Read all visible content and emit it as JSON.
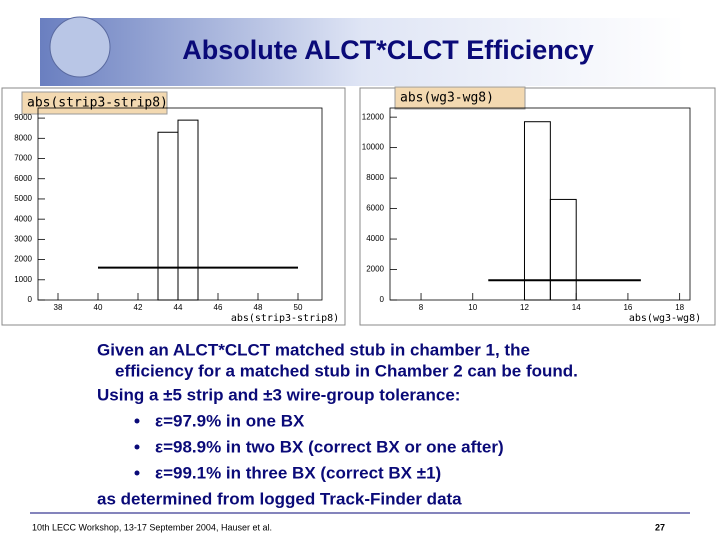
{
  "title": "Absolute ALCT*CLCT Efficiency",
  "chart_data": [
    {
      "type": "histogram",
      "title": "abs(strip3-strip8)",
      "x_label": "abs(strip3-strip8)",
      "bins": [
        43,
        44,
        45
      ],
      "counts": [
        8300,
        8900
      ],
      "color": "#000000",
      "xlim": [
        37,
        51.2
      ],
      "xticks": [
        38,
        40,
        42,
        44,
        46,
        48,
        50
      ],
      "ylim": [
        0,
        9500
      ],
      "yticks": [
        0,
        1000,
        2000,
        3000,
        4000,
        5000,
        6000,
        7000,
        8000,
        9000
      ],
      "level_line": {
        "value": 1600,
        "from": 40,
        "to": 50
      }
    },
    {
      "type": "histogram",
      "title": "abs(wg3-wg8)",
      "x_label": "abs(wg3-wg8)",
      "bins": [
        12,
        13,
        14
      ],
      "counts": [
        11700,
        6600
      ],
      "color": "#000000",
      "xlim": [
        6.8,
        18.4
      ],
      "xticks": [
        8,
        10,
        12,
        14,
        16,
        18
      ],
      "ylim": [
        0,
        12600
      ],
      "yticks": [
        0,
        2000,
        4000,
        6000,
        8000,
        10000,
        12000
      ],
      "level_line": {
        "value": 1300,
        "from": 10.6,
        "to": 16.5
      }
    }
  ],
  "body": {
    "lines": [
      "Given an ALCT*CLCT matched stub in chamber 1, the",
      "efficiency for a matched stub in Chamber 2 can be found.",
      "Using a ±5 strip and ±3 wire-group tolerance:"
    ],
    "bullets": [
      "ε=97.9% in one BX",
      "ε=98.9% in two BX   (correct BX or one after)",
      "ε=99.1% in three BX (correct BX ±1)"
    ],
    "closing": "as determined from logged Track-Finder data"
  },
  "footer": {
    "text": "10th LECC Workshop, 13-17 September 2004, Hauser et al.",
    "page": "27"
  }
}
